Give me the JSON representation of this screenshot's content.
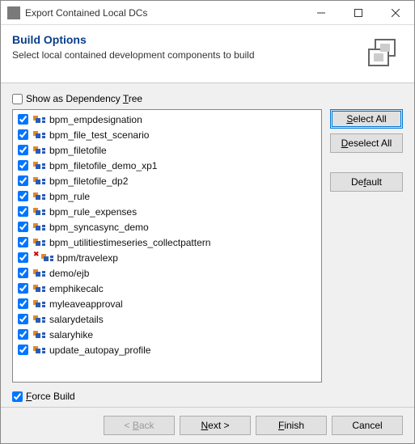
{
  "window": {
    "title": "Export Contained Local DCs"
  },
  "banner": {
    "heading": "Build Options",
    "subtext": "Select local contained development components to build"
  },
  "dep_tree": {
    "label_pre": "Show as Dependency ",
    "label_mn": "T",
    "label_post": "ree",
    "checked": false
  },
  "components": [
    {
      "label": "bpm_empdesignation",
      "checked": true,
      "error": false
    },
    {
      "label": "bpm_file_test_scenario",
      "checked": true,
      "error": false
    },
    {
      "label": "bpm_filetofile",
      "checked": true,
      "error": false
    },
    {
      "label": "bpm_filetofile_demo_xp1",
      "checked": true,
      "error": false
    },
    {
      "label": "bpm_filetofile_dp2",
      "checked": true,
      "error": false
    },
    {
      "label": "bpm_rule",
      "checked": true,
      "error": false
    },
    {
      "label": "bpm_rule_expenses",
      "checked": true,
      "error": false
    },
    {
      "label": "bpm_syncasync_demo",
      "checked": true,
      "error": false
    },
    {
      "label": "bpm_utilitiestimeseries_collectpattern",
      "checked": true,
      "error": false
    },
    {
      "label": "bpm/travelexp",
      "checked": true,
      "error": true
    },
    {
      "label": "demo/ejb",
      "checked": true,
      "error": false
    },
    {
      "label": "emphikecalc",
      "checked": true,
      "error": false
    },
    {
      "label": "myleaveapproval",
      "checked": true,
      "error": false
    },
    {
      "label": "salarydetails",
      "checked": true,
      "error": false
    },
    {
      "label": "salaryhike",
      "checked": true,
      "error": false
    },
    {
      "label": "update_autopay_profile",
      "checked": true,
      "error": false
    }
  ],
  "side": {
    "select_all_pre": "",
    "select_all_mn": "S",
    "select_all_post": "elect All",
    "deselect_all_pre": "",
    "deselect_all_mn": "D",
    "deselect_all_post": "eselect All",
    "default_pre": "De",
    "default_mn": "f",
    "default_post": "ault"
  },
  "force": {
    "label_mn": "F",
    "label_post": "orce Build",
    "checked": true
  },
  "footer": {
    "back_pre": "< ",
    "back_mn": "B",
    "back_post": "ack",
    "next_pre": "",
    "next_mn": "N",
    "next_post": "ext >",
    "finish_pre": "",
    "finish_mn": "F",
    "finish_post": "inish",
    "cancel": "Cancel"
  },
  "colors": {
    "heading": "#0a3e8a",
    "icon_blue": "#2b5cb3",
    "icon_orange": "#e08a2a",
    "border": "#888888",
    "bg": "#f0f0f0"
  }
}
